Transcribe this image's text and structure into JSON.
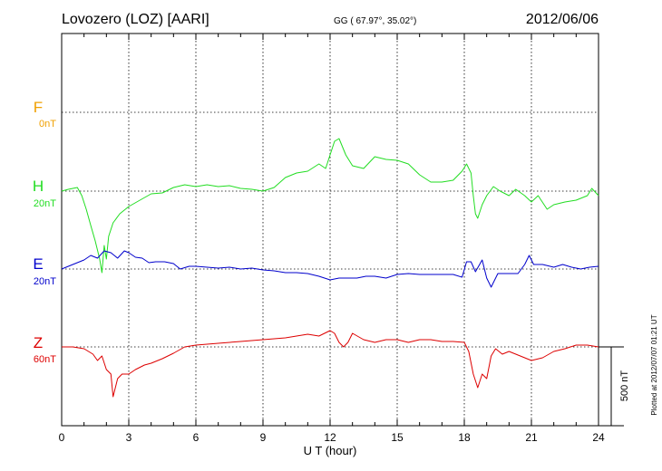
{
  "header": {
    "title": "Lovozero (LOZ)  [AARI]",
    "coords": "GG ( 67.97°,  35.02°)",
    "date": "2012/06/06"
  },
  "footer": {
    "plotted": "Plotted at 2012/07/07 01:21  UT"
  },
  "colors": {
    "F": "#f0a000",
    "H": "#22dd22",
    "E": "#0000cc",
    "Z": "#dd0000"
  },
  "chart_data": {
    "type": "line",
    "xlabel": "U T (hour)",
    "xlim": [
      0,
      24
    ],
    "x_ticks": [
      "0",
      "3",
      "6",
      "9",
      "12",
      "15",
      "18",
      "21",
      "24"
    ],
    "grid": true,
    "scale_bar_label": "500 nT",
    "series": [
      {
        "name": "F",
        "scale_label": "0nT",
        "color": "#f0a000",
        "points": []
      },
      {
        "name": "H",
        "scale_label": "20nT",
        "color": "#22dd22",
        "points": [
          [
            0,
            0
          ],
          [
            0.3,
            0.02
          ],
          [
            0.7,
            0.04
          ],
          [
            0.9,
            -0.05
          ],
          [
            1.1,
            -0.2
          ],
          [
            1.3,
            -0.38
          ],
          [
            1.5,
            -0.55
          ],
          [
            1.7,
            -0.75
          ],
          [
            1.8,
            -0.9
          ],
          [
            1.9,
            -0.6
          ],
          [
            2.0,
            -0.75
          ],
          [
            2.1,
            -0.5
          ],
          [
            2.3,
            -0.35
          ],
          [
            2.6,
            -0.25
          ],
          [
            3.0,
            -0.17
          ],
          [
            3.5,
            -0.1
          ],
          [
            4.0,
            -0.03
          ],
          [
            4.5,
            -0.02
          ],
          [
            5.0,
            0.04
          ],
          [
            5.5,
            0.07
          ],
          [
            6.0,
            0.05
          ],
          [
            6.5,
            0.07
          ],
          [
            7.0,
            0.05
          ],
          [
            7.5,
            0.06
          ],
          [
            8.0,
            0.03
          ],
          [
            8.5,
            0.02
          ],
          [
            9.0,
            0.0
          ],
          [
            9.5,
            0.04
          ],
          [
            10.0,
            0.15
          ],
          [
            10.5,
            0.2
          ],
          [
            11.0,
            0.22
          ],
          [
            11.5,
            0.3
          ],
          [
            11.8,
            0.25
          ],
          [
            12.0,
            0.4
          ],
          [
            12.2,
            0.55
          ],
          [
            12.4,
            0.58
          ],
          [
            12.7,
            0.4
          ],
          [
            13.0,
            0.28
          ],
          [
            13.5,
            0.25
          ],
          [
            14.0,
            0.38
          ],
          [
            14.5,
            0.35
          ],
          [
            15.0,
            0.34
          ],
          [
            15.5,
            0.3
          ],
          [
            16.0,
            0.18
          ],
          [
            16.5,
            0.1
          ],
          [
            17.0,
            0.1
          ],
          [
            17.5,
            0.12
          ],
          [
            17.9,
            0.22
          ],
          [
            18.1,
            0.3
          ],
          [
            18.3,
            0.2
          ],
          [
            18.4,
            -0.05
          ],
          [
            18.5,
            -0.25
          ],
          [
            18.6,
            -0.3
          ],
          [
            18.8,
            -0.15
          ],
          [
            19.0,
            -0.05
          ],
          [
            19.3,
            0.05
          ],
          [
            19.6,
            0.0
          ],
          [
            20.0,
            -0.05
          ],
          [
            20.3,
            0.02
          ],
          [
            20.7,
            -0.05
          ],
          [
            21.0,
            -0.12
          ],
          [
            21.3,
            -0.05
          ],
          [
            21.7,
            -0.2
          ],
          [
            22.0,
            -0.15
          ],
          [
            22.5,
            -0.12
          ],
          [
            23.0,
            -0.1
          ],
          [
            23.5,
            -0.05
          ],
          [
            23.7,
            0.03
          ],
          [
            24.0,
            -0.05
          ]
        ]
      },
      {
        "name": "E",
        "scale_label": "20nT",
        "color": "#0000cc",
        "points": [
          [
            0,
            0.0
          ],
          [
            0.5,
            0.05
          ],
          [
            1.0,
            0.1
          ],
          [
            1.3,
            0.15
          ],
          [
            1.6,
            0.12
          ],
          [
            1.9,
            0.2
          ],
          [
            2.2,
            0.18
          ],
          [
            2.5,
            0.12
          ],
          [
            2.8,
            0.2
          ],
          [
            3.0,
            0.18
          ],
          [
            3.3,
            0.13
          ],
          [
            3.6,
            0.12
          ],
          [
            3.9,
            0.07
          ],
          [
            4.2,
            0.08
          ],
          [
            4.6,
            0.08
          ],
          [
            5.0,
            0.06
          ],
          [
            5.3,
            0.0
          ],
          [
            5.7,
            0.03
          ],
          [
            6.0,
            0.03
          ],
          [
            6.5,
            0.02
          ],
          [
            7.0,
            0.01
          ],
          [
            7.5,
            0.02
          ],
          [
            8.0,
            0.0
          ],
          [
            8.5,
            0.01
          ],
          [
            9.0,
            -0.01
          ],
          [
            9.5,
            -0.02
          ],
          [
            10.0,
            -0.04
          ],
          [
            10.5,
            -0.04
          ],
          [
            11.0,
            -0.05
          ],
          [
            11.5,
            -0.08
          ],
          [
            12.0,
            -0.12
          ],
          [
            12.4,
            -0.1
          ],
          [
            12.8,
            -0.1
          ],
          [
            13.2,
            -0.1
          ],
          [
            13.6,
            -0.08
          ],
          [
            14.0,
            -0.08
          ],
          [
            14.5,
            -0.1
          ],
          [
            15.0,
            -0.06
          ],
          [
            15.5,
            -0.05
          ],
          [
            16.0,
            -0.06
          ],
          [
            16.5,
            -0.06
          ],
          [
            17.0,
            -0.06
          ],
          [
            17.5,
            -0.06
          ],
          [
            17.9,
            -0.09
          ],
          [
            18.1,
            0.08
          ],
          [
            18.3,
            0.08
          ],
          [
            18.5,
            -0.03
          ],
          [
            18.8,
            0.1
          ],
          [
            19.0,
            -0.1
          ],
          [
            19.2,
            -0.2
          ],
          [
            19.5,
            -0.05
          ],
          [
            20.0,
            -0.05
          ],
          [
            20.4,
            -0.05
          ],
          [
            20.7,
            0.05
          ],
          [
            20.9,
            0.15
          ],
          [
            21.1,
            0.05
          ],
          [
            21.5,
            0.05
          ],
          [
            22.0,
            0.02
          ],
          [
            22.4,
            0.05
          ],
          [
            22.8,
            0.02
          ],
          [
            23.2,
            0.0
          ],
          [
            23.6,
            0.02
          ],
          [
            24.0,
            0.03
          ]
        ]
      },
      {
        "name": "Z",
        "scale_label": "60nT",
        "color": "#dd0000",
        "points": [
          [
            0,
            0.0
          ],
          [
            0.5,
            0.0
          ],
          [
            1.0,
            -0.02
          ],
          [
            1.4,
            -0.08
          ],
          [
            1.6,
            -0.15
          ],
          [
            1.8,
            -0.1
          ],
          [
            2.0,
            -0.25
          ],
          [
            2.2,
            -0.3
          ],
          [
            2.3,
            -0.55
          ],
          [
            2.5,
            -0.35
          ],
          [
            2.7,
            -0.3
          ],
          [
            3.0,
            -0.3
          ],
          [
            3.3,
            -0.25
          ],
          [
            3.7,
            -0.2
          ],
          [
            4.0,
            -0.18
          ],
          [
            4.5,
            -0.13
          ],
          [
            5.0,
            -0.07
          ],
          [
            5.5,
            0.0
          ],
          [
            6.0,
            0.02
          ],
          [
            7.0,
            0.04
          ],
          [
            8.0,
            0.06
          ],
          [
            9.0,
            0.08
          ],
          [
            10.0,
            0.1
          ],
          [
            11.0,
            0.14
          ],
          [
            11.5,
            0.12
          ],
          [
            12.0,
            0.18
          ],
          [
            12.2,
            0.15
          ],
          [
            12.4,
            0.05
          ],
          [
            12.6,
            0.0
          ],
          [
            12.8,
            0.05
          ],
          [
            13.0,
            0.15
          ],
          [
            13.5,
            0.08
          ],
          [
            14.0,
            0.05
          ],
          [
            14.5,
            0.08
          ],
          [
            15.0,
            0.08
          ],
          [
            15.5,
            0.05
          ],
          [
            16.0,
            0.08
          ],
          [
            16.5,
            0.08
          ],
          [
            17.0,
            0.06
          ],
          [
            17.5,
            0.06
          ],
          [
            18.0,
            0.05
          ],
          [
            18.2,
            -0.05
          ],
          [
            18.4,
            -0.3
          ],
          [
            18.6,
            -0.45
          ],
          [
            18.8,
            -0.3
          ],
          [
            19.0,
            -0.35
          ],
          [
            19.2,
            -0.1
          ],
          [
            19.4,
            -0.02
          ],
          [
            19.7,
            -0.08
          ],
          [
            20.0,
            -0.05
          ],
          [
            20.5,
            -0.1
          ],
          [
            21.0,
            -0.15
          ],
          [
            21.5,
            -0.12
          ],
          [
            22.0,
            -0.05
          ],
          [
            22.5,
            -0.02
          ],
          [
            23.0,
            0.02
          ],
          [
            23.5,
            0.02
          ],
          [
            24.0,
            0.0
          ]
        ]
      }
    ]
  }
}
